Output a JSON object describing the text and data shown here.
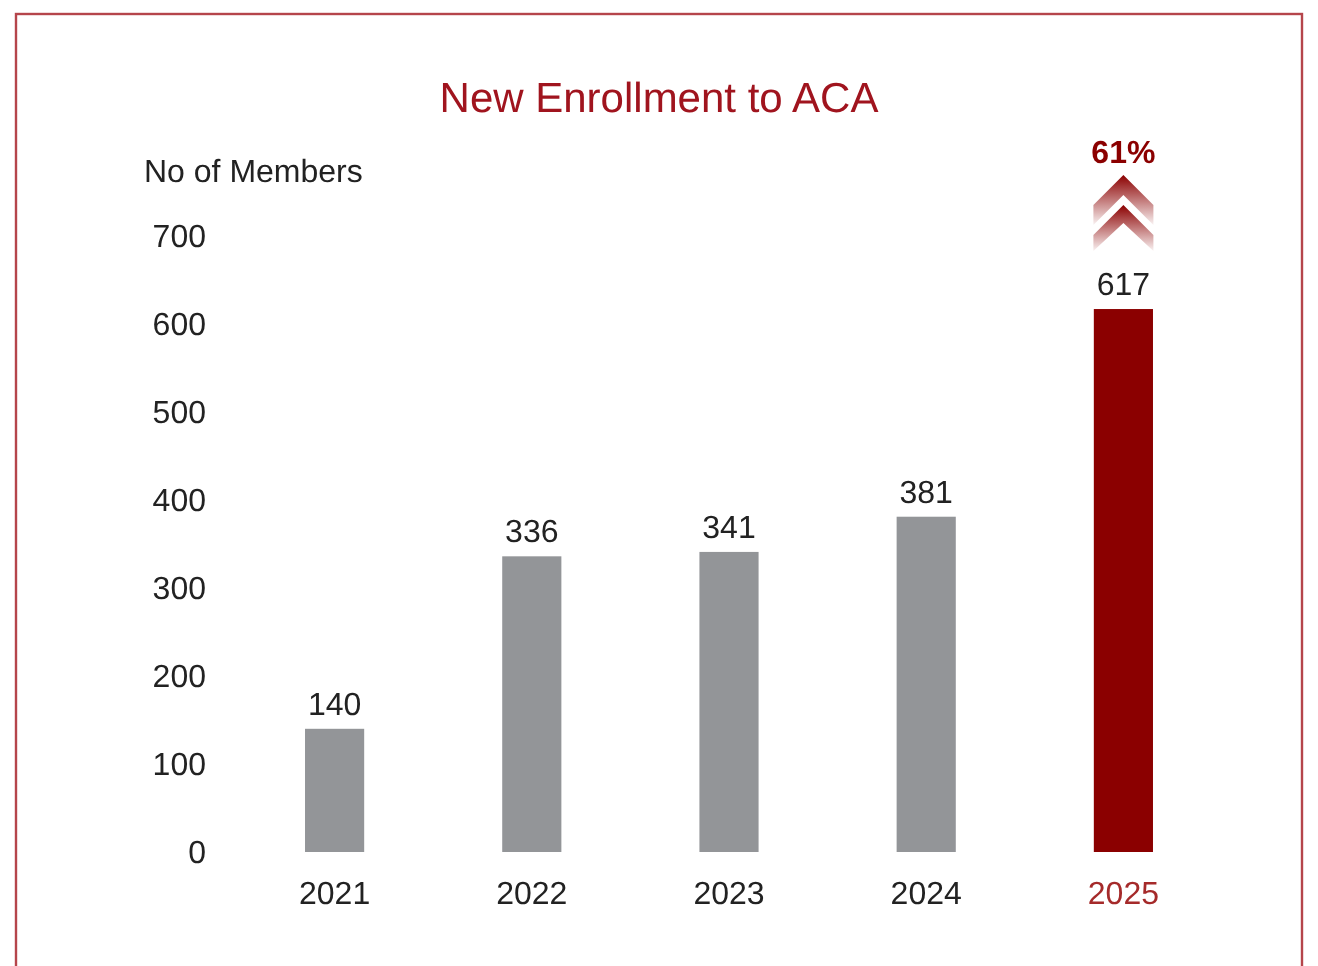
{
  "chart_data": {
    "type": "bar",
    "title": "New Enrollment to ACA",
    "ylabel": "No of Members",
    "categories": [
      "2021",
      "2022",
      "2023",
      "2024",
      "2025"
    ],
    "values": [
      140,
      336,
      341,
      381,
      617
    ],
    "colors": [
      "#939598",
      "#939598",
      "#939598",
      "#939598",
      "#8b0000"
    ],
    "ylim": [
      0,
      700
    ],
    "yticks": [
      0,
      100,
      200,
      300,
      400,
      500,
      600,
      700
    ],
    "data_labels": true,
    "grid": false,
    "annotations": [
      "61%"
    ]
  }
}
